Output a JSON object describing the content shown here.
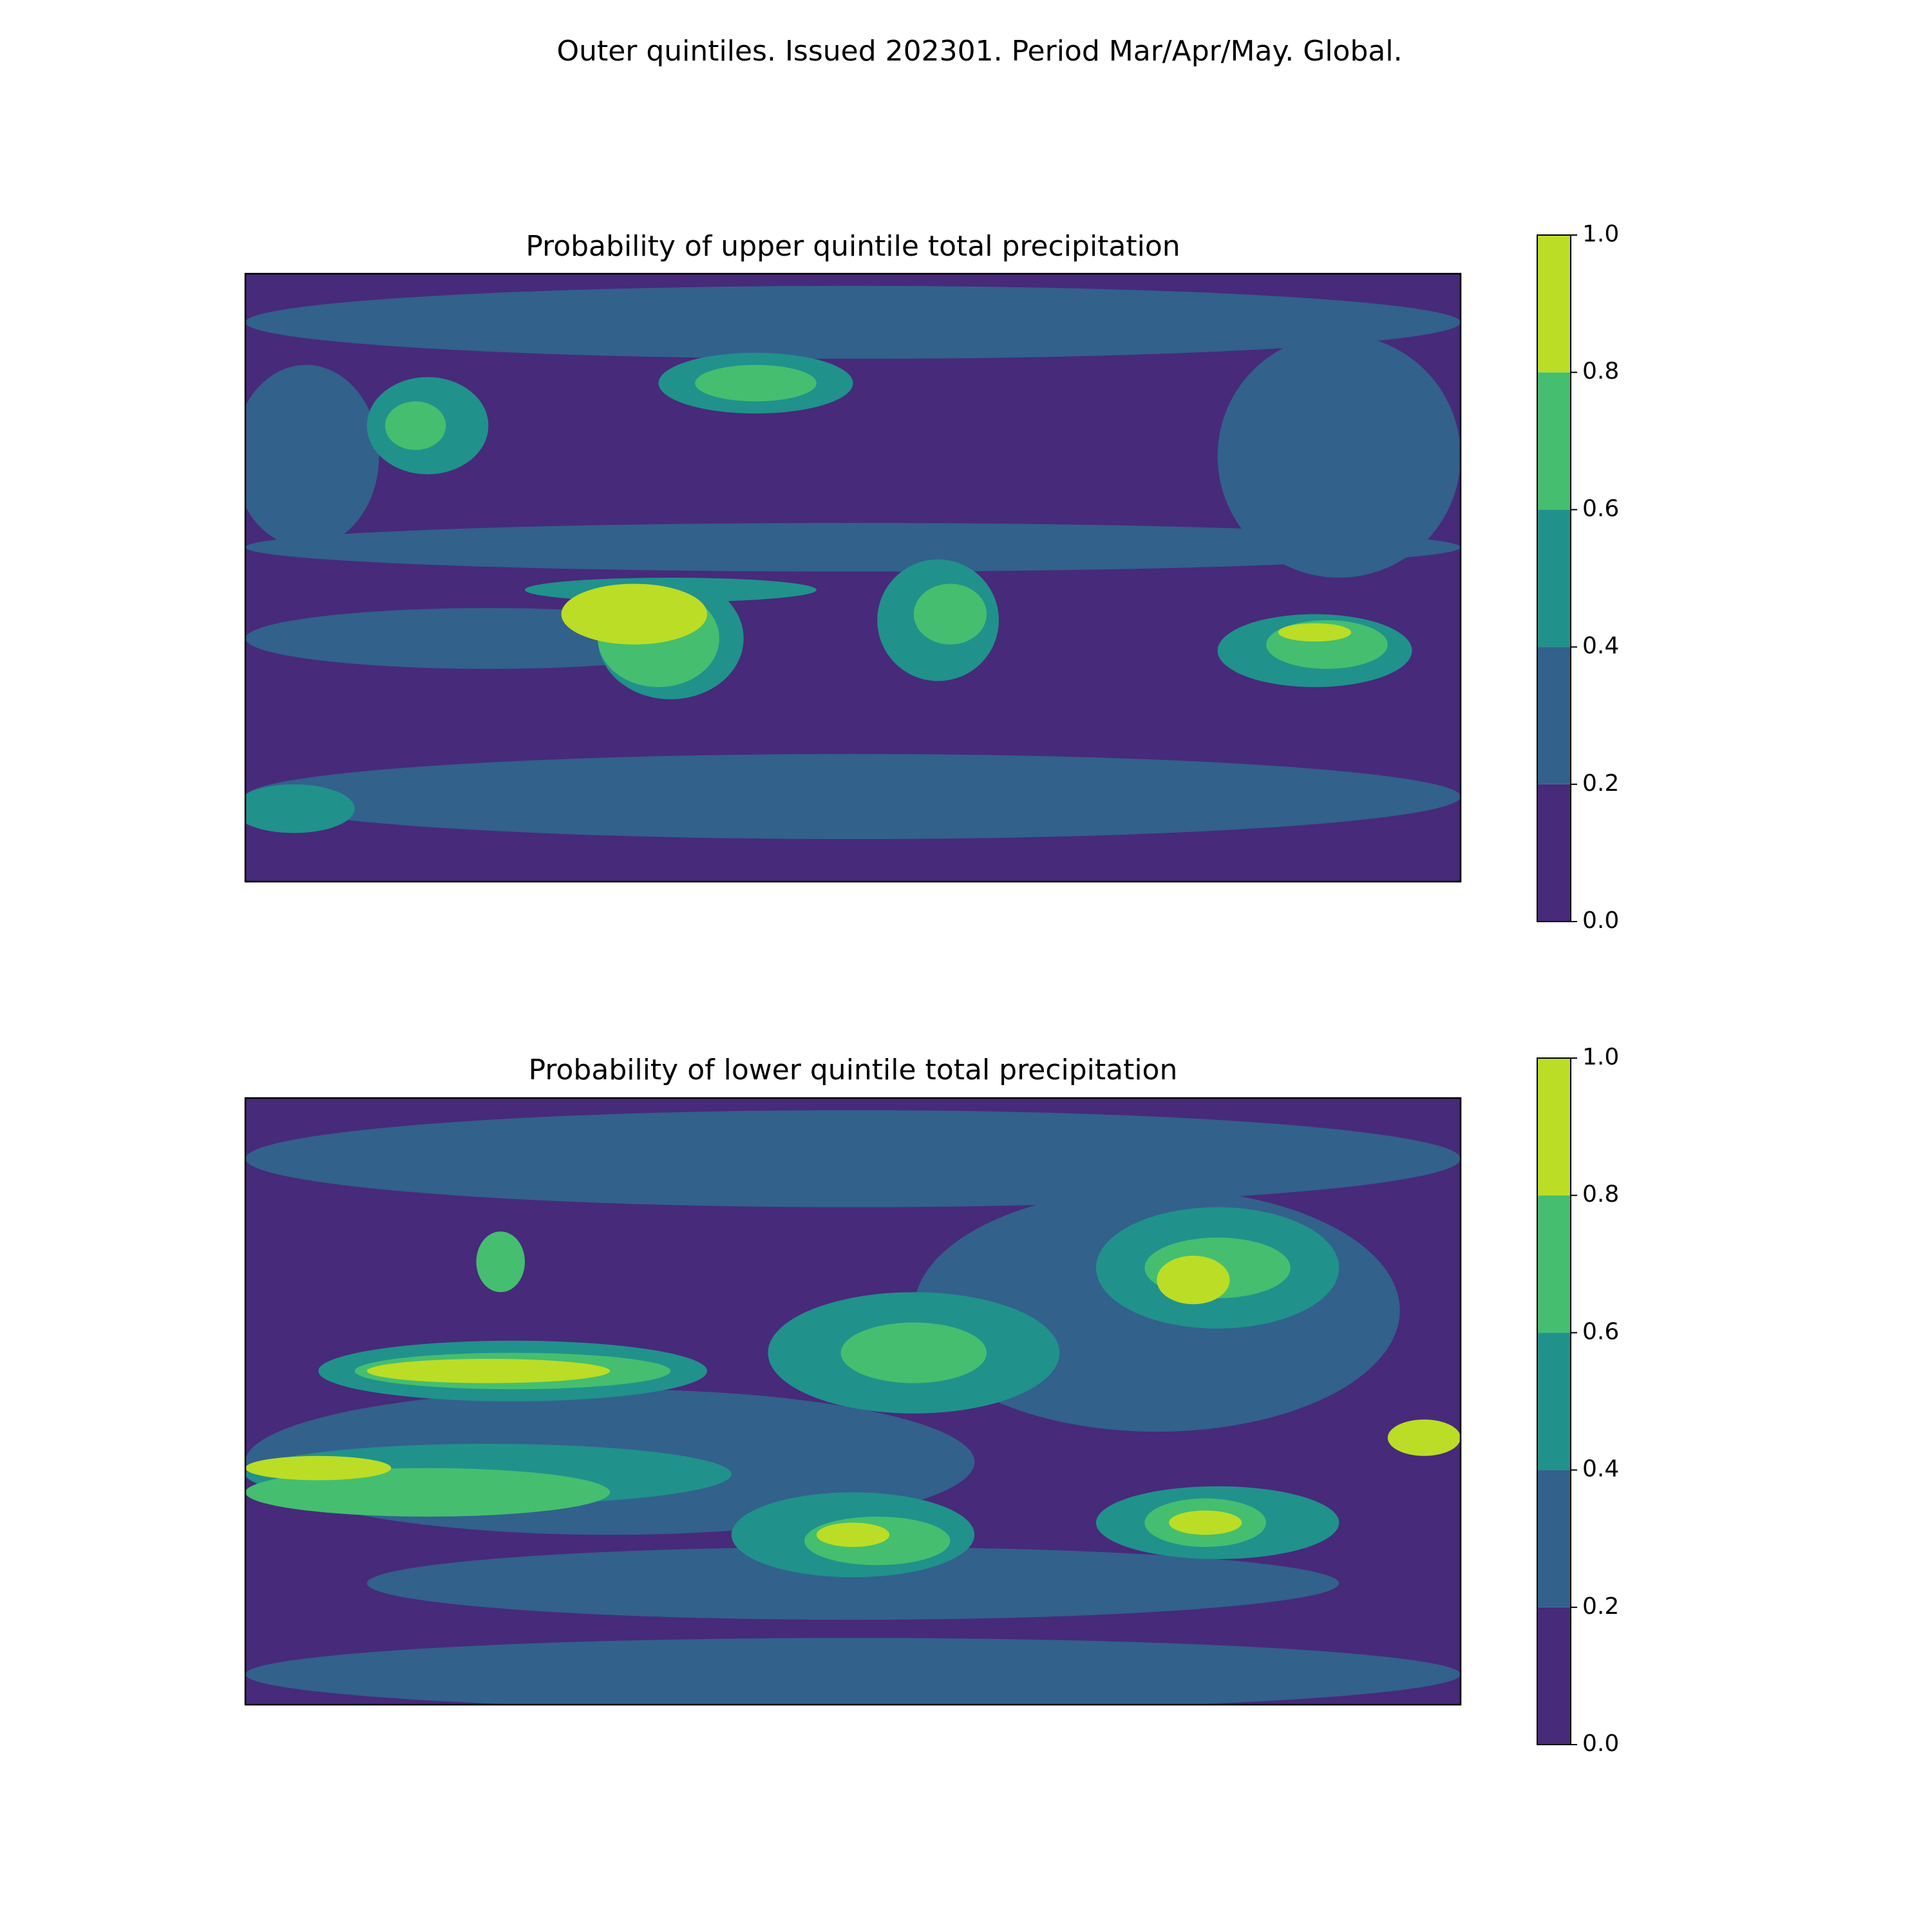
{
  "title": "Outer quintiles. Issued 202301. Period Mar/Apr/May. Global.",
  "chart_data": [
    {
      "type": "map",
      "title": "Probability of upper quintile total precipitation",
      "colors": [
        "#472a7a",
        "#32618c",
        "#21918c",
        "#45be70",
        "#bbdd26"
      ],
      "colorbar_ticks": [
        {
          "value": 0,
          "label": "0.0"
        },
        0.2,
        0.4,
        0.6,
        0.8,
        {
          "value": 1,
          "label": "1.0"
        }
      ]
    },
    {
      "type": "map",
      "title": "Probability of lower quintile total precipitation",
      "colors": [
        "#472a7a",
        "#32618c",
        "#21918c",
        "#45be70",
        "#bbdd26"
      ],
      "colorbar_ticks": [
        {
          "value": 0,
          "label": "0.0"
        },
        0.2,
        0.4,
        0.6,
        0.8,
        {
          "value": 1,
          "label": "1.0"
        }
      ]
    }
  ]
}
